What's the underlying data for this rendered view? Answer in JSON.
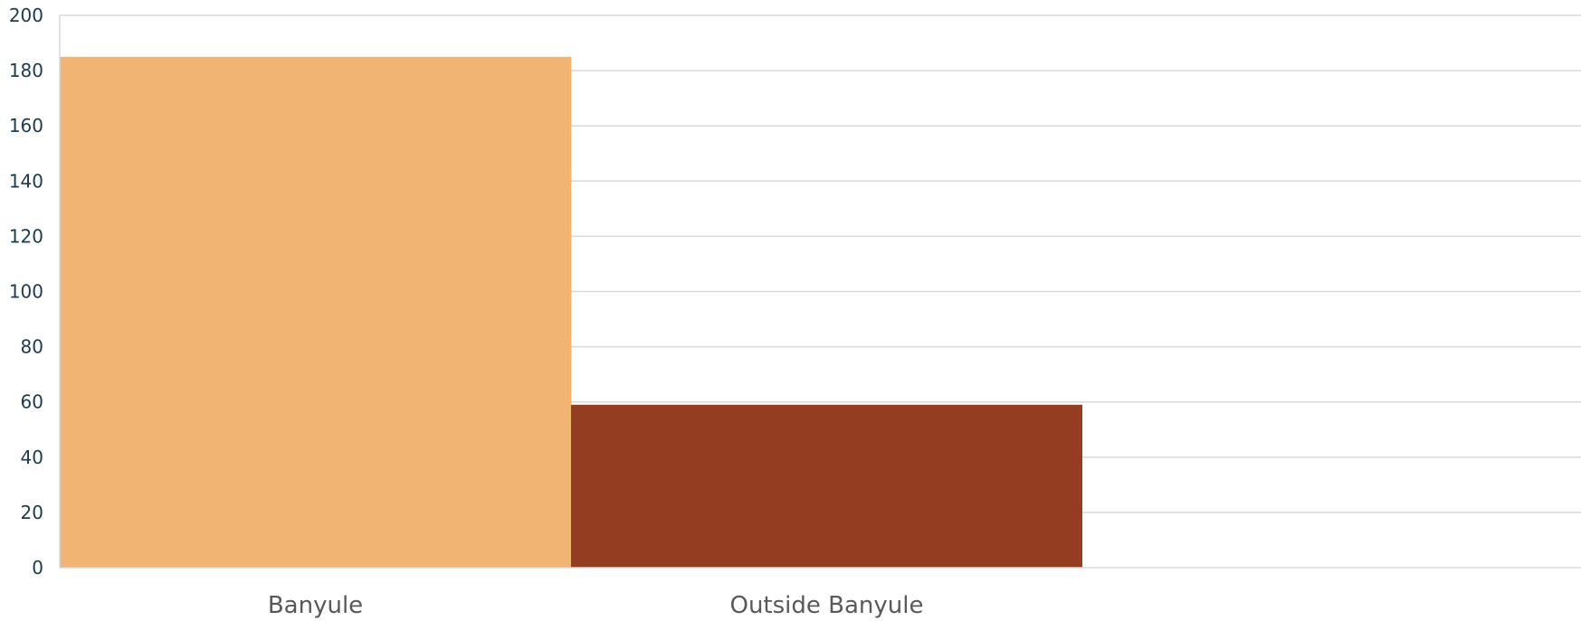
{
  "chart_data": {
    "type": "bar",
    "categories": [
      "Banyule",
      "Outside Banyule"
    ],
    "values": [
      185,
      59
    ],
    "colors": [
      "#f2b472",
      "#953d20"
    ],
    "title": "",
    "xlabel": "",
    "ylabel": "",
    "ylim": [
      0,
      200
    ],
    "yticks": [
      0,
      20,
      40,
      60,
      80,
      100,
      120,
      140,
      160,
      180,
      200
    ],
    "grid": true,
    "legend": "none"
  }
}
